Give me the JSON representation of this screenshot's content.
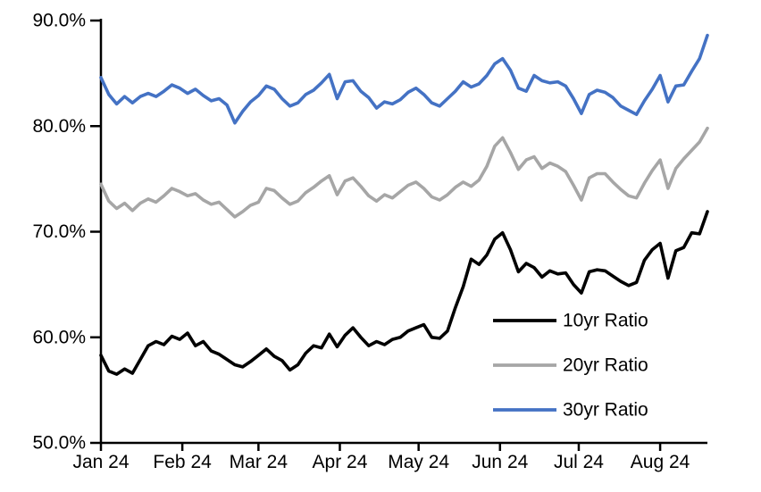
{
  "chart_data": {
    "type": "line",
    "title": "",
    "xlabel": "",
    "ylabel": "",
    "grid": false,
    "background_color": "#ffffff",
    "axis_color": "#000000",
    "x_axis": {
      "tick_labels": [
        "Jan 24",
        "Feb 24",
        "Mar 24",
        "Apr 24",
        "May 24",
        "Jun 24",
        "Jul 24",
        "Aug 24"
      ],
      "tick_days": [
        0,
        31,
        60,
        91,
        121,
        152,
        182,
        213
      ],
      "total_days": 231
    },
    "y_axis": {
      "tick_labels": [
        "50.0%",
        "60.0%",
        "70.0%",
        "80.0%",
        "90.0%"
      ],
      "tick_values": [
        50,
        60,
        70,
        80,
        90
      ],
      "range": [
        50,
        90
      ]
    },
    "legend": {
      "position": "inside-lower-right",
      "entries": [
        {
          "label": "10yr Ratio",
          "color": "#000000"
        },
        {
          "label": "20yr Ratio",
          "color": "#A6A6A6"
        },
        {
          "label": "30yr Ratio",
          "color": "#4472C4"
        }
      ]
    },
    "sample_interval_days": 3,
    "series": [
      {
        "name": "10yr Ratio",
        "color": "#000000",
        "values": [
          58.3,
          56.8,
          56.5,
          57.0,
          56.6,
          57.9,
          59.2,
          59.6,
          59.3,
          60.1,
          59.8,
          60.4,
          59.2,
          59.6,
          58.7,
          58.4,
          57.9,
          57.4,
          57.2,
          57.7,
          58.3,
          58.9,
          58.2,
          57.8,
          56.9,
          57.4,
          58.5,
          59.2,
          59.0,
          60.3,
          59.1,
          60.2,
          60.9,
          60.0,
          59.2,
          59.6,
          59.3,
          59.8,
          60.0,
          60.6,
          60.9,
          61.2,
          60.0,
          59.9,
          60.6,
          62.8,
          64.8,
          67.4,
          66.9,
          67.8,
          69.3,
          69.9,
          68.3,
          66.2,
          67.0,
          66.6,
          65.7,
          66.3,
          66.0,
          66.1,
          65.0,
          64.2,
          66.2,
          66.4,
          66.3,
          65.8,
          65.3,
          64.9,
          65.2,
          67.3,
          68.3,
          68.9,
          65.6,
          68.2,
          68.5,
          69.9,
          69.8,
          71.9
        ]
      },
      {
        "name": "20yr Ratio",
        "color": "#A6A6A6",
        "values": [
          74.5,
          72.9,
          72.2,
          72.7,
          72.0,
          72.7,
          73.1,
          72.8,
          73.4,
          74.1,
          73.8,
          73.4,
          73.6,
          73.0,
          72.6,
          72.8,
          72.1,
          71.4,
          71.9,
          72.5,
          72.8,
          74.1,
          73.9,
          73.2,
          72.6,
          72.9,
          73.7,
          74.2,
          74.8,
          75.3,
          73.5,
          74.8,
          75.1,
          74.3,
          73.4,
          72.9,
          73.5,
          73.2,
          73.8,
          74.4,
          74.7,
          74.1,
          73.3,
          73.0,
          73.5,
          74.2,
          74.7,
          74.3,
          74.9,
          76.2,
          78.1,
          78.9,
          77.5,
          75.9,
          76.8,
          77.1,
          76.0,
          76.5,
          76.2,
          75.7,
          74.4,
          73.0,
          75.1,
          75.5,
          75.5,
          74.7,
          74.0,
          73.4,
          73.2,
          74.6,
          75.8,
          76.8,
          74.1,
          76.0,
          76.9,
          77.7,
          78.5,
          79.8
        ]
      },
      {
        "name": "30yr Ratio",
        "color": "#4472C4",
        "values": [
          84.6,
          83.0,
          82.1,
          82.8,
          82.2,
          82.8,
          83.1,
          82.8,
          83.3,
          83.9,
          83.6,
          83.1,
          83.5,
          82.9,
          82.4,
          82.6,
          82.0,
          80.3,
          81.4,
          82.3,
          82.9,
          83.8,
          83.5,
          82.6,
          81.9,
          82.2,
          83.0,
          83.4,
          84.1,
          84.9,
          82.6,
          84.2,
          84.3,
          83.3,
          82.7,
          81.7,
          82.3,
          82.1,
          82.5,
          83.2,
          83.6,
          83.0,
          82.2,
          81.9,
          82.6,
          83.3,
          84.2,
          83.7,
          84.0,
          84.8,
          85.9,
          86.4,
          85.3,
          83.6,
          83.3,
          84.8,
          84.3,
          84.1,
          84.2,
          83.8,
          82.6,
          81.2,
          83.0,
          83.4,
          83.2,
          82.7,
          81.9,
          81.5,
          81.1,
          82.4,
          83.5,
          84.8,
          82.3,
          83.8,
          83.9,
          85.2,
          86.4,
          88.6
        ]
      }
    ]
  }
}
